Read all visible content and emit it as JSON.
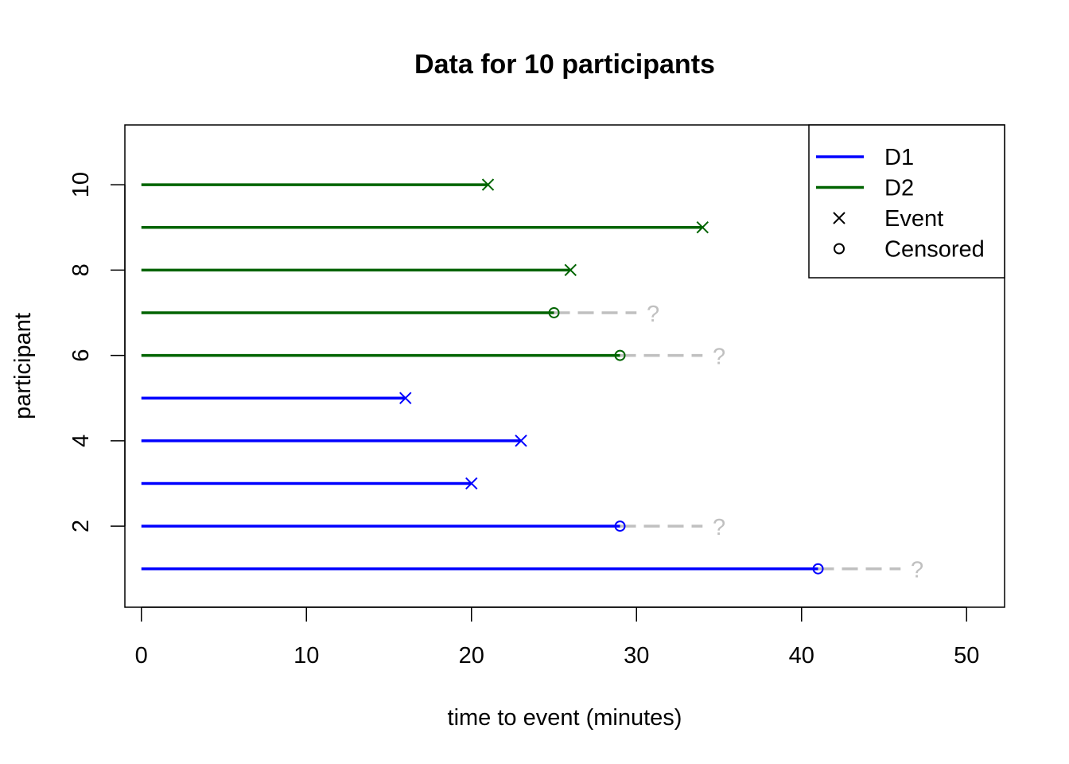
{
  "chart_data": {
    "type": "line",
    "title": "Data for 10 participants",
    "xlabel": "time to event (minutes)",
    "ylabel": "participant",
    "xlim": [
      -1,
      52.3
    ],
    "ylim": [
      0.1,
      11.4
    ],
    "xticks": [
      "0",
      "10",
      "20",
      "30",
      "40",
      "50"
    ],
    "xtick_values": [
      0,
      10,
      20,
      30,
      40,
      50
    ],
    "yticks": [
      "2",
      "4",
      "6",
      "8",
      "10"
    ],
    "ytick_values": [
      2,
      4,
      6,
      8,
      10
    ],
    "legend_position": "top-right",
    "legend": [
      {
        "label": "D1",
        "kind": "line",
        "color": "#0000ff"
      },
      {
        "label": "D2",
        "kind": "line",
        "color": "#006400"
      },
      {
        "label": "Event",
        "kind": "x",
        "color": "#000000"
      },
      {
        "label": "Censored",
        "kind": "circle",
        "color": "#000000"
      }
    ],
    "censor_marker": "?",
    "censor_color": "#c0c0c0",
    "series": [
      {
        "name": "D1",
        "color": "#0000ff",
        "participants": [
          {
            "participant": 1,
            "time": 41,
            "status": "censored"
          },
          {
            "participant": 2,
            "time": 29,
            "status": "censored"
          },
          {
            "participant": 3,
            "time": 20,
            "status": "event"
          },
          {
            "participant": 4,
            "time": 23,
            "status": "event"
          },
          {
            "participant": 5,
            "time": 16,
            "status": "event"
          }
        ]
      },
      {
        "name": "D2",
        "color": "#006400",
        "participants": [
          {
            "participant": 6,
            "time": 29,
            "status": "censored"
          },
          {
            "participant": 7,
            "time": 25,
            "status": "censored"
          },
          {
            "participant": 8,
            "time": 26,
            "status": "event"
          },
          {
            "participant": 9,
            "time": 34,
            "status": "event"
          },
          {
            "participant": 10,
            "time": 21,
            "status": "event"
          }
        ]
      }
    ]
  }
}
